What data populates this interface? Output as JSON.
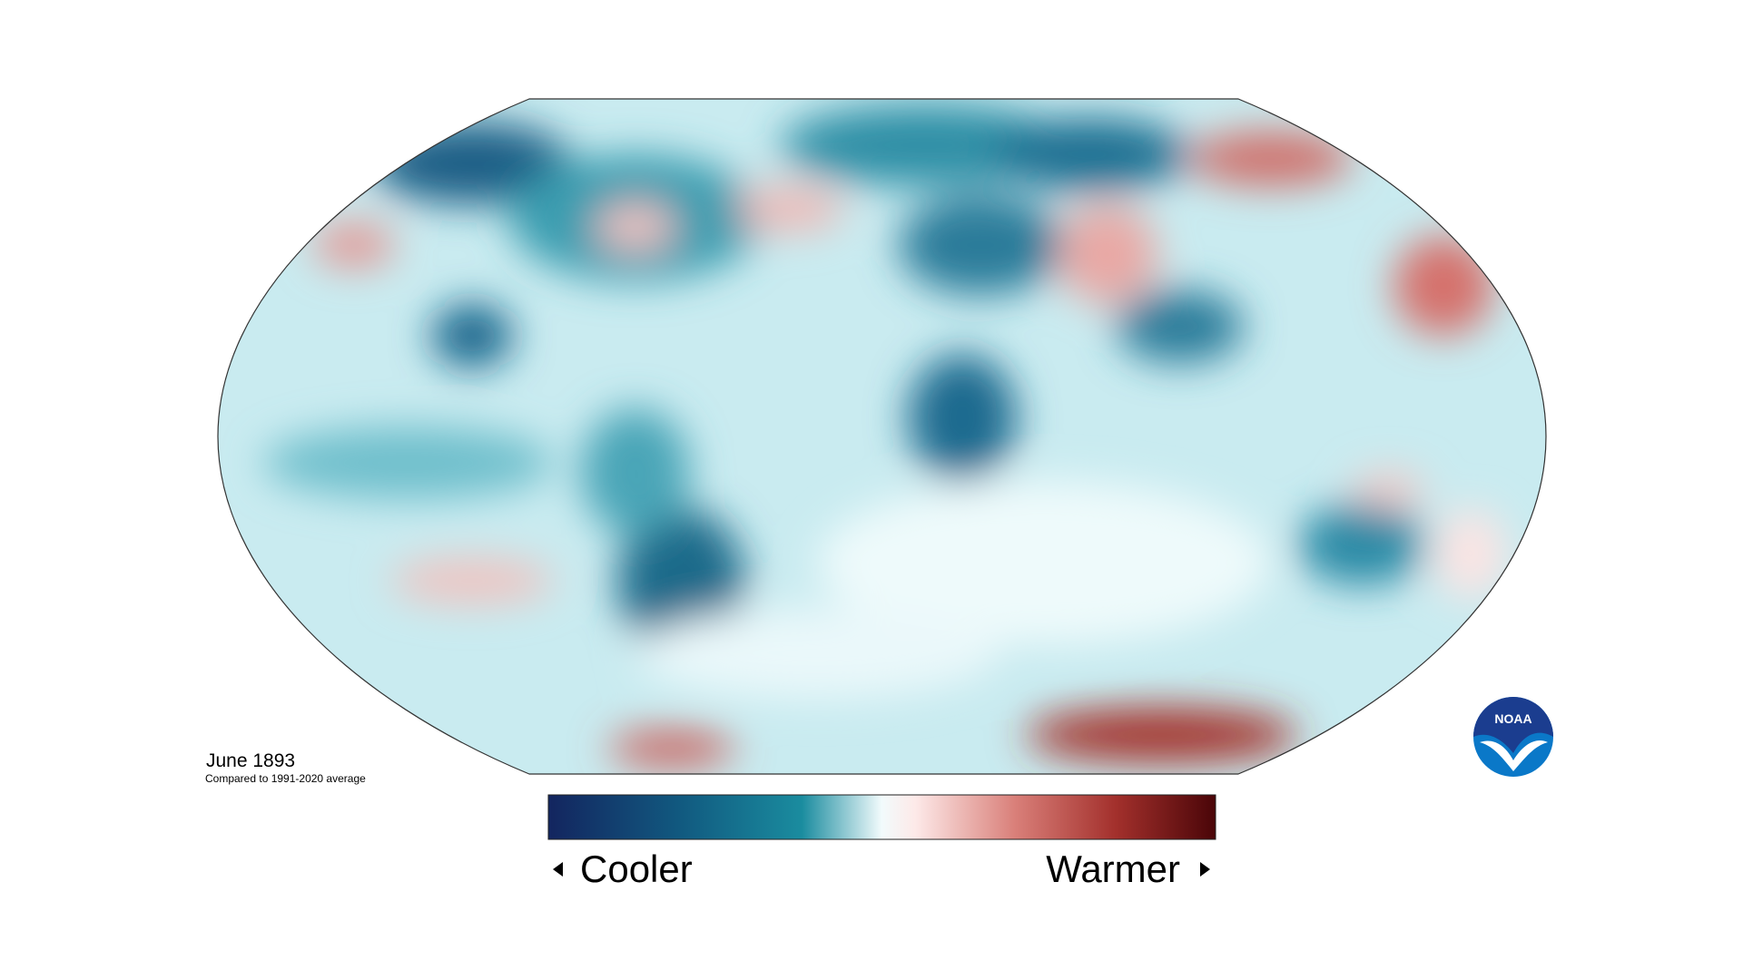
{
  "map": {
    "title": "June 1893",
    "subtitle": "Compared to 1991-2020 average"
  },
  "legend": {
    "low": "Cooler",
    "high": "Warmer"
  },
  "logo": {
    "text": "NOAA"
  }
}
